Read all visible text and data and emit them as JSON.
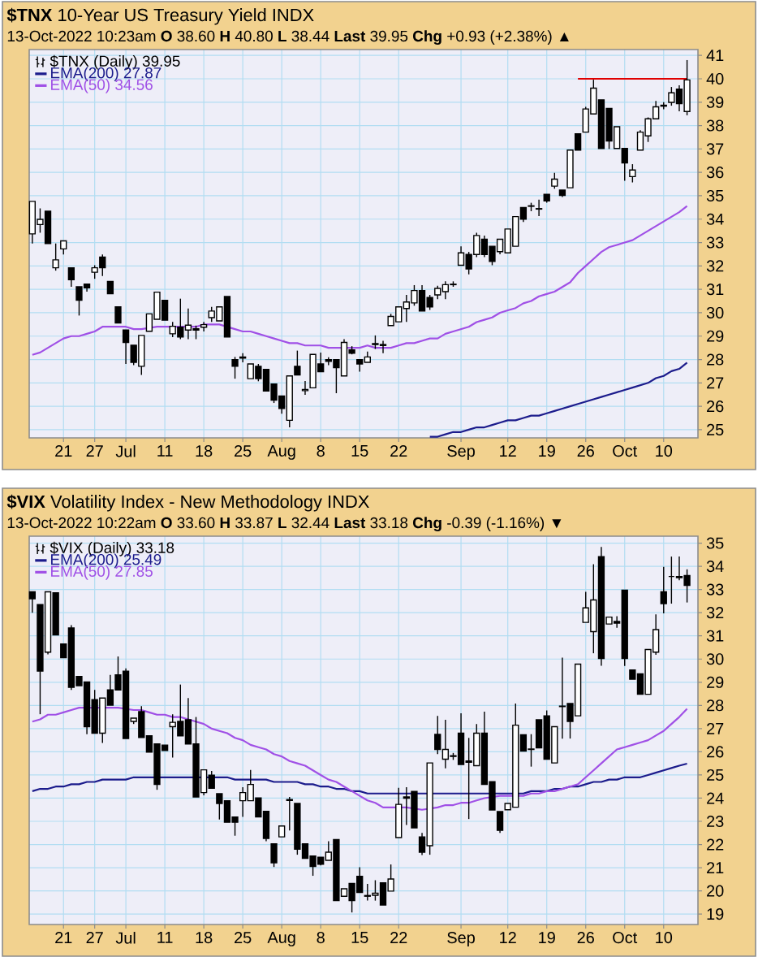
{
  "chart_data": [
    {
      "type": "candlestick",
      "title": "**$TNX** 10-Year US Treasury Yield INDX",
      "subtitle": "13-Oct-2022 10:23am   **O** 38.60 **H** 40.80 **L** 38.44 **Last** 39.95 **Chg** +0.93 (+2.38%) ▲",
      "categories": [
        null,
        null,
        null,
        null,
        "21",
        null,
        null,
        null,
        "27",
        null,
        null,
        null,
        "Jul",
        null,
        null,
        null,
        null,
        "11",
        null,
        null,
        null,
        null,
        "18",
        null,
        null,
        null,
        null,
        "25",
        null,
        null,
        null,
        null,
        "Aug",
        null,
        null,
        null,
        null,
        "8",
        null,
        null,
        null,
        null,
        "15",
        null,
        null,
        null,
        null,
        "22",
        null,
        null,
        null,
        null,
        null,
        null,
        null,
        "Sep",
        null,
        null,
        null,
        null,
        null,
        "12",
        null,
        null,
        null,
        null,
        "19",
        null,
        null,
        null,
        null,
        "26",
        null,
        null,
        null,
        null,
        "Oct",
        null,
        null,
        null,
        null,
        "10",
        null,
        null,
        null
      ],
      "series": [
        {
          "name": "$TNX (Daily) 39.95",
          "type": "candlestick",
          "ohlc": [
            [
              33.37,
              34.76,
              32.96,
              34.76
            ],
            [
              33.77,
              34.46,
              33.42,
              33.99
            ],
            [
              34.34,
              34.34,
              32.96,
              32.96
            ],
            [
              31.92,
              32.96,
              31.8,
              32.26
            ],
            [
              32.73,
              33.07,
              32.49,
              33.07
            ],
            [
              31.92,
              31.92,
              31.11,
              31.41
            ],
            [
              31.11,
              31.11,
              29.88,
              30.53
            ],
            [
              31.22,
              31.22,
              30.9,
              31.06
            ],
            [
              31.73,
              32.03,
              31.45,
              31.92
            ],
            [
              32.38,
              32.49,
              31.57,
              31.92
            ],
            [
              31.34,
              31.34,
              30.81,
              30.81
            ],
            [
              30.25,
              30.25,
              29.56,
              29.56
            ],
            [
              29.26,
              29.26,
              27.81,
              28.73
            ],
            [
              28.61,
              28.61,
              27.76,
              27.88
            ],
            [
              27.71,
              29.03,
              27.34,
              29.03
            ],
            [
              29.21,
              29.95,
              29.21,
              29.95
            ],
            [
              29.72,
              30.88,
              29.72,
              30.88
            ],
            [
              30.53,
              30.53,
              29.68,
              29.68
            ],
            [
              29.1,
              29.61,
              28.96,
              29.42
            ],
            [
              29.38,
              30.6,
              28.87,
              28.96
            ],
            [
              29.26,
              30.18,
              28.87,
              29.47
            ],
            [
              29.31,
              29.45,
              28.87,
              29.26
            ],
            [
              29.38,
              29.61,
              29.2,
              29.49
            ],
            [
              29.79,
              30.25,
              29.61,
              30.07
            ],
            [
              29.65,
              30.25,
              29.65,
              30.25
            ],
            [
              30.69,
              30.69,
              28.96,
              28.96
            ],
            [
              27.99,
              28.11,
              27.18,
              27.71
            ],
            [
              28.11,
              28.27,
              27.88,
              28.06
            ],
            [
              27.18,
              27.81,
              27.18,
              27.81
            ],
            [
              27.71,
              27.81,
              27.07,
              27.18
            ],
            [
              27.58,
              27.58,
              26.65,
              26.65
            ],
            [
              26.95,
              26.95,
              26.14,
              26.26
            ],
            [
              26.44,
              26.44,
              25.68,
              25.91
            ],
            [
              25.4,
              27.3,
              25.1,
              27.3
            ],
            [
              27.71,
              28.38,
              27.34,
              27.34
            ],
            [
              26.67,
              27.08,
              26.49,
              26.72
            ],
            [
              26.79,
              28.22,
              26.79,
              28.22
            ],
            [
              27.81,
              28.3,
              27.48,
              27.48
            ],
            [
              27.99,
              28.1,
              27.76,
              27.92
            ],
            [
              27.99,
              27.99,
              26.56,
              27.65
            ],
            [
              27.3,
              28.87,
              27.3,
              28.73
            ],
            [
              28.41,
              28.57,
              28.22,
              28.27
            ],
            [
              27.99,
              27.99,
              27.48,
              27.81
            ],
            [
              27.88,
              28.34,
              27.88,
              28.11
            ],
            [
              28.64,
              29.03,
              28.45,
              28.68
            ],
            [
              28.6,
              28.8,
              28.27,
              28.64
            ],
            [
              29.45,
              29.95,
              29.45,
              29.84
            ],
            [
              29.61,
              30.25,
              29.61,
              30.25
            ],
            [
              30.18,
              30.76,
              29.61,
              30.46
            ],
            [
              30.42,
              31.18,
              30.3,
              30.95
            ],
            [
              30.95,
              31.18,
              30.07,
              30.07
            ],
            [
              30.65,
              30.76,
              30.12,
              30.25
            ],
            [
              30.76,
              31.15,
              30.58,
              31.04
            ],
            [
              30.9,
              31.34,
              30.58,
              31.2
            ],
            [
              31.2,
              31.34,
              31.11,
              31.22
            ],
            [
              32.03,
              32.84,
              32.03,
              32.56
            ],
            [
              32.49,
              32.6,
              31.64,
              31.87
            ],
            [
              32.49,
              33.42,
              32.38,
              33.3
            ],
            [
              33.14,
              33.3,
              32.38,
              32.49
            ],
            [
              32.84,
              32.84,
              32.03,
              32.19
            ],
            [
              32.61,
              33.14,
              32.5,
              33.14
            ],
            [
              32.56,
              33.58,
              32.56,
              33.58
            ],
            [
              32.84,
              34.11,
              32.84,
              34.11
            ],
            [
              34.5,
              34.5,
              33.88,
              34.0
            ],
            [
              34.55,
              34.7,
              34.34,
              34.57
            ],
            [
              34.45,
              34.83,
              34.13,
              34.43
            ],
            [
              35.06,
              35.06,
              34.7,
              34.78
            ],
            [
              35.41,
              35.98,
              35.3,
              35.71
            ],
            [
              35.24,
              35.24,
              34.95,
              35.01
            ],
            [
              35.34,
              36.95,
              35.34,
              36.95
            ],
            [
              37.65,
              37.65,
              36.95,
              36.95
            ],
            [
              37.72,
              38.8,
              37.72,
              38.71
            ],
            [
              38.5,
              39.96,
              38.5,
              39.6
            ],
            [
              39.1,
              39.1,
              37.02,
              37.02
            ],
            [
              38.73,
              38.73,
              37.0,
              37.34
            ],
            [
              37.02,
              37.95,
              37.02,
              37.95
            ],
            [
              37.02,
              37.02,
              35.64,
              36.4
            ],
            [
              35.82,
              36.35,
              35.57,
              36.1
            ],
            [
              36.95,
              37.8,
              36.95,
              37.72
            ],
            [
              37.56,
              38.35,
              37.3,
              38.29
            ],
            [
              38.29,
              39.05,
              38.29,
              38.8
            ],
            [
              38.83,
              39.0,
              38.7,
              38.87
            ],
            [
              38.99,
              39.65,
              38.85,
              39.4
            ],
            [
              39.56,
              39.72,
              38.61,
              38.94
            ],
            [
              38.6,
              40.8,
              38.44,
              39.95
            ]
          ]
        },
        {
          "name": "EMA(200) 27.87",
          "type": "line",
          "color": "#1c1c8c",
          "values": [
            null,
            null,
            null,
            null,
            null,
            null,
            null,
            null,
            null,
            null,
            null,
            null,
            null,
            null,
            null,
            null,
            null,
            null,
            null,
            null,
            null,
            null,
            null,
            null,
            null,
            null,
            null,
            null,
            null,
            null,
            null,
            null,
            null,
            null,
            null,
            null,
            null,
            null,
            null,
            null,
            null,
            null,
            null,
            null,
            null,
            null,
            null,
            null,
            null,
            null,
            null,
            24.7,
            24.7,
            24.8,
            24.9,
            24.9,
            25.0,
            25.1,
            25.1,
            25.2,
            25.3,
            25.4,
            25.4,
            25.5,
            25.6,
            25.6,
            25.7,
            25.8,
            25.9,
            26.0,
            26.1,
            26.2,
            26.3,
            26.4,
            26.5,
            26.6,
            26.7,
            26.8,
            26.9,
            27.0,
            27.2,
            27.3,
            27.5,
            27.6,
            27.87
          ]
        },
        {
          "name": "EMA(50) 34.56",
          "type": "line",
          "color": "#a050e6",
          "values": [
            28.2,
            28.3,
            28.5,
            28.7,
            28.9,
            29.0,
            29.0,
            29.1,
            29.2,
            29.4,
            29.4,
            29.4,
            29.4,
            29.3,
            29.3,
            null,
            29.4,
            29.4,
            null,
            29.4,
            null,
            29.4,
            29.5,
            29.5,
            29.5,
            null,
            29.3,
            29.2,
            29.2,
            29.1,
            29.0,
            28.9,
            28.8,
            28.7,
            28.7,
            28.6,
            28.6,
            28.6,
            28.5,
            28.5,
            null,
            28.5,
            28.5,
            28.6,
            28.5,
            28.5,
            28.5,
            28.6,
            28.7,
            28.7,
            28.8,
            28.9,
            28.9,
            29.1,
            29.2,
            29.3,
            29.4,
            29.6,
            29.7,
            29.8,
            30.0,
            30.1,
            30.2,
            30.4,
            30.5,
            30.7,
            30.8,
            30.9,
            31.1,
            31.3,
            31.7,
            32.0,
            32.3,
            32.6,
            32.8,
            32.9,
            33.0,
            33.1,
            33.3,
            33.5,
            33.7,
            33.9,
            34.1,
            34.3,
            34.56
          ]
        },
        {
          "type": "line",
          "color": "#e00000",
          "values": [
            null,
            null,
            null,
            null,
            null,
            null,
            null,
            null,
            null,
            null,
            null,
            null,
            null,
            null,
            null,
            null,
            null,
            null,
            null,
            null,
            null,
            null,
            null,
            null,
            null,
            null,
            null,
            null,
            null,
            null,
            null,
            null,
            null,
            null,
            null,
            null,
            null,
            null,
            null,
            null,
            null,
            null,
            null,
            null,
            null,
            null,
            null,
            null,
            null,
            null,
            null,
            null,
            null,
            null,
            null,
            null,
            null,
            null,
            null,
            null,
            null,
            null,
            null,
            null,
            null,
            null,
            null,
            null,
            null,
            null,
            40.0,
            40.0,
            40.0,
            40.0,
            40.0,
            40.0,
            40.0,
            40.0,
            40.0,
            40.0,
            40.0,
            40.0,
            40.0,
            40.0,
            40.0
          ]
        }
      ],
      "ylim": [
        24.65,
        41.25
      ],
      "yticks": [
        25,
        26,
        27,
        28,
        29,
        30,
        31,
        32,
        33,
        34,
        35,
        36,
        37,
        38,
        39,
        40,
        41
      ],
      "grid": true,
      "legend": "top left"
    },
    {
      "type": "candlestick",
      "title": "**$VIX** Volatility Index - New Methodology INDX",
      "subtitle": "13-Oct-2022 10:22am   **O** 33.60 **H** 33.87 **L** 32.44 **Last** 33.18 **Chg** -0.39 (-1.16%) ▼",
      "categories": [
        null,
        null,
        null,
        null,
        "21",
        null,
        null,
        null,
        "27",
        null,
        null,
        null,
        "Jul",
        null,
        null,
        null,
        null,
        "11",
        null,
        null,
        null,
        null,
        "18",
        null,
        null,
        null,
        null,
        "25",
        null,
        null,
        null,
        null,
        "Aug",
        null,
        null,
        null,
        null,
        "8",
        null,
        null,
        null,
        null,
        "15",
        null,
        null,
        null,
        null,
        "22",
        null,
        null,
        null,
        null,
        null,
        null,
        null,
        "Sep",
        null,
        null,
        null,
        null,
        null,
        "12",
        null,
        null,
        null,
        null,
        "19",
        null,
        null,
        null,
        null,
        "26",
        null,
        null,
        null,
        null,
        "Oct",
        null,
        null,
        null,
        null,
        "10",
        null,
        null,
        null
      ],
      "series": [
        {
          "name": "$VIX (Daily) 33.18",
          "type": "candlestick",
          "ohlc": [
            [
              32.9,
              32.9,
              32.0,
              32.6
            ],
            [
              32.35,
              32.35,
              27.62,
              29.48
            ],
            [
              30.3,
              32.9,
              30.2,
              32.9
            ],
            [
              32.86,
              32.86,
              31.04,
              31.04
            ],
            [
              30.65,
              30.65,
              30.06,
              30.06
            ],
            [
              31.34,
              31.46,
              28.67,
              28.78
            ],
            [
              29.25,
              29.25,
              28.85,
              28.85
            ],
            [
              29.01,
              29.01,
              26.76,
              27.08
            ],
            [
              28.25,
              28.67,
              26.8,
              26.8
            ],
            [
              26.8,
              28.32,
              26.38,
              28.32
            ],
            [
              28.67,
              29.32,
              28.01,
              28.01
            ],
            [
              29.32,
              30.11,
              28.67,
              28.67
            ],
            [
              29.48,
              29.6,
              26.57,
              26.57
            ],
            [
              27.31,
              27.45,
              27.2,
              27.45
            ],
            [
              27.73,
              27.97,
              26.62,
              26.62
            ],
            [
              26.69,
              26.69,
              25.99,
              25.99
            ],
            [
              26.34,
              26.34,
              24.36,
              24.59
            ],
            [
              26.29,
              26.29,
              26.06,
              26.06
            ],
            [
              27.08,
              27.62,
              25.75,
              27.27
            ],
            [
              27.31,
              28.9,
              26.69,
              26.69
            ],
            [
              27.38,
              28.32,
              26.34,
              26.34
            ],
            [
              26.34,
              27.5,
              24.05,
              24.05
            ],
            [
              24.24,
              25.22,
              24.12,
              25.22
            ],
            [
              24.99,
              25.17,
              24.43,
              24.43
            ],
            [
              24.19,
              24.19,
              23.08,
              23.77
            ],
            [
              23.89,
              23.89,
              22.96,
              22.96
            ],
            [
              23.19,
              23.19,
              22.38,
              22.96
            ],
            [
              23.89,
              24.47,
              23.19,
              24.24
            ],
            [
              23.89,
              25.22,
              23.89,
              24.59
            ],
            [
              24.01,
              24.01,
              23.19,
              23.19
            ],
            [
              23.43,
              23.43,
              22.14,
              22.26
            ],
            [
              22.03,
              22.03,
              21.03,
              21.21
            ],
            [
              22.33,
              22.8,
              22.33,
              22.8
            ],
            [
              23.94,
              24.05,
              22.61,
              23.9
            ],
            [
              23.77,
              23.77,
              21.56,
              21.8
            ],
            [
              22.03,
              22.03,
              21.4,
              21.4
            ],
            [
              21.5,
              21.5,
              20.65,
              21.05
            ],
            [
              21.45,
              21.45,
              21.1,
              21.15
            ],
            [
              21.32,
              22.14,
              21.32,
              21.67
            ],
            [
              22.21,
              22.21,
              19.58,
              19.58
            ],
            [
              19.77,
              20.09,
              19.77,
              20.09
            ],
            [
              20.32,
              20.32,
              19.07,
              19.58
            ],
            [
              20.63,
              21.02,
              19.93,
              19.93
            ],
            [
              19.8,
              20.3,
              19.58,
              19.77
            ],
            [
              19.81,
              20.46,
              19.58,
              19.9
            ],
            [
              20.35,
              20.35,
              19.39,
              19.39
            ],
            [
              19.99,
              21.14,
              19.99,
              20.51
            ],
            [
              22.3,
              24.45,
              22.3,
              23.73
            ],
            [
              24.05,
              24.47,
              22.84,
              24.0
            ],
            [
              24.29,
              24.29,
              22.72,
              22.72
            ],
            [
              22.33,
              22.5,
              21.55,
              21.67
            ],
            [
              21.95,
              25.52,
              21.56,
              25.52
            ],
            [
              26.75,
              27.55,
              25.9,
              26.1
            ],
            [
              25.68,
              27.38,
              25.29,
              26.1
            ],
            [
              25.8,
              25.95,
              25.65,
              25.83
            ],
            [
              26.8,
              27.66,
              25.45,
              25.45
            ],
            [
              25.6,
              26.6,
              23.1,
              25.55
            ],
            [
              25.4,
              27.2,
              25.4,
              26.8
            ],
            [
              26.8,
              27.73,
              24.59,
              24.59
            ],
            [
              24.71,
              24.71,
              23.49,
              23.49
            ],
            [
              23.42,
              23.42,
              22.5,
              22.61
            ],
            [
              23.5,
              23.77,
              23.5,
              23.77
            ],
            [
              23.61,
              28.08,
              23.61,
              27.15
            ],
            [
              26.73,
              26.73,
              26.03,
              26.03
            ],
            [
              26.12,
              26.76,
              25.36,
              26.1
            ],
            [
              27.38,
              27.38,
              26.17,
              26.17
            ],
            [
              27.55,
              27.78,
              25.68,
              25.68
            ],
            [
              25.52,
              27.08,
              25.52,
              27.08
            ],
            [
              27.95,
              30.06,
              26.57,
              27.97
            ],
            [
              28.08,
              28.08,
              26.57,
              27.31
            ],
            [
              27.55,
              29.78,
              27.55,
              29.78
            ],
            [
              31.58,
              32.9,
              31.58,
              32.21
            ],
            [
              31.18,
              34.09,
              30.25,
              32.55
            ],
            [
              34.42,
              34.84,
              29.71,
              30.02
            ],
            [
              31.51,
              31.81,
              31.51,
              31.81
            ],
            [
              31.62,
              31.85,
              31.35,
              31.55
            ],
            [
              32.97,
              32.97,
              29.7,
              30.02
            ],
            [
              29.53,
              29.53,
              29.13,
              29.13
            ],
            [
              29.36,
              29.36,
              28.48,
              28.48
            ],
            [
              28.48,
              30.41,
              28.48,
              30.41
            ],
            [
              30.3,
              31.93,
              30.18,
              31.27
            ],
            [
              32.9,
              33.98,
              31.97,
              32.39
            ],
            [
              33.56,
              34.42,
              32.39,
              33.56
            ],
            [
              33.56,
              34.42,
              33.4,
              33.51
            ],
            [
              33.6,
              33.87,
              32.44,
              33.18
            ]
          ]
        },
        {
          "name": "EMA(200) 25.49",
          "type": "line",
          "color": "#1c1c8c",
          "values": [
            24.3,
            24.4,
            24.4,
            24.5,
            24.5,
            24.6,
            24.6,
            24.7,
            24.7,
            24.8,
            24.8,
            24.8,
            24.8,
            24.9,
            24.9,
            24.9,
            null,
            24.9,
            24.9,
            24.9,
            24.9,
            null,
            null,
            null,
            24.9,
            24.9,
            24.8,
            24.8,
            24.8,
            24.8,
            24.8,
            24.7,
            24.7,
            24.7,
            24.7,
            24.6,
            24.6,
            24.5,
            24.5,
            24.4,
            24.4,
            24.3,
            24.3,
            24.2,
            24.2,
            24.2,
            24.2,
            24.2,
            24.2,
            null,
            24.2,
            null,
            24.2,
            24.2,
            24.2,
            24.2,
            24.2,
            24.2,
            24.2,
            null,
            24.2,
            24.2,
            null,
            24.2,
            24.3,
            24.3,
            24.3,
            24.4,
            24.4,
            24.5,
            24.5,
            24.6,
            24.7,
            24.7,
            24.8,
            24.8,
            24.9,
            24.9,
            24.9,
            25.0,
            25.1,
            25.2,
            25.3,
            25.4,
            25.49
          ]
        },
        {
          "name": "EMA(50) 27.85",
          "type": "line",
          "color": "#a050e6",
          "values": [
            27.3,
            27.4,
            27.6,
            27.6,
            27.7,
            27.8,
            27.9,
            null,
            null,
            null,
            27.9,
            27.9,
            null,
            27.8,
            27.8,
            27.7,
            27.6,
            27.6,
            27.5,
            27.5,
            27.4,
            27.3,
            27.2,
            27.0,
            26.9,
            26.8,
            26.6,
            26.5,
            26.3,
            26.2,
            26.1,
            25.9,
            25.8,
            25.6,
            25.5,
            25.4,
            25.2,
            25.0,
            24.8,
            24.7,
            24.5,
            24.3,
            24.1,
            23.9,
            23.8,
            23.6,
            23.6,
            null,
            23.6,
            null,
            23.5,
            null,
            23.6,
            23.7,
            23.7,
            23.8,
            23.8,
            23.9,
            24.0,
            null,
            24.1,
            24.1,
            null,
            24.1,
            24.2,
            24.2,
            24.3,
            24.3,
            24.4,
            24.5,
            24.6,
            24.9,
            25.2,
            25.5,
            25.8,
            26.1,
            26.2,
            26.3,
            26.4,
            26.5,
            26.7,
            26.9,
            27.2,
            27.5,
            27.85
          ]
        }
      ],
      "ylim": [
        18.55,
        35.3
      ],
      "yticks": [
        19,
        20,
        21,
        22,
        23,
        24,
        25,
        26,
        27,
        28,
        29,
        30,
        31,
        32,
        33,
        34,
        35
      ],
      "grid": true,
      "legend": "top left"
    }
  ]
}
